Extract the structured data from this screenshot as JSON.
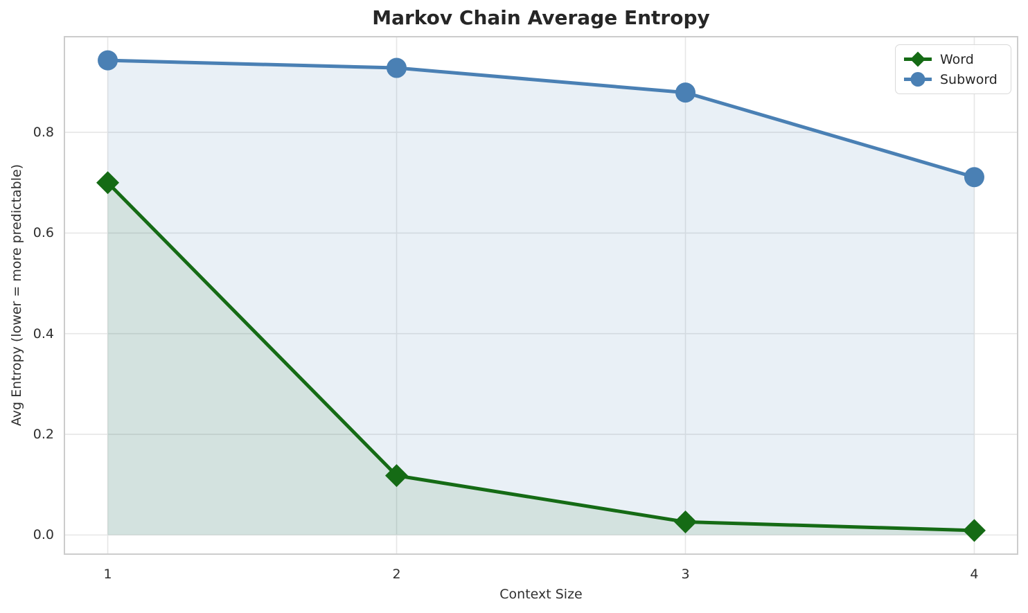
{
  "chart_data": {
    "type": "line",
    "title": "Markov Chain Average Entropy",
    "xlabel": "Context Size",
    "ylabel": "Avg Entropy (lower = more predictable)",
    "x": [
      1,
      2,
      3,
      4
    ],
    "series": [
      {
        "name": "Word",
        "values": [
          0.7,
          0.118,
          0.026,
          0.009
        ],
        "color": "#156b15",
        "marker": "diamond",
        "fill_alpha": 0.1
      },
      {
        "name": "Subword",
        "values": [
          0.943,
          0.928,
          0.879,
          0.711
        ],
        "color": "#4a80b4",
        "marker": "circle",
        "fill_alpha": 0.12
      }
    ],
    "xticks": [
      "1",
      "2",
      "3",
      "4"
    ],
    "xtick_values": [
      1,
      2,
      3,
      4
    ],
    "yticks": [
      "0.0",
      "0.2",
      "0.4",
      "0.6",
      "0.8"
    ],
    "ytick_values": [
      0,
      0.2,
      0.4,
      0.6,
      0.8
    ],
    "xlim": [
      0.85,
      4.15
    ],
    "ylim": [
      -0.038,
      0.99
    ],
    "grid": true,
    "grid_color": "#e6e6e6",
    "spine_color": "#cccccc",
    "background": "#ffffff",
    "legend_position": "upper right",
    "legend_entries": [
      "Word",
      "Subword"
    ]
  }
}
